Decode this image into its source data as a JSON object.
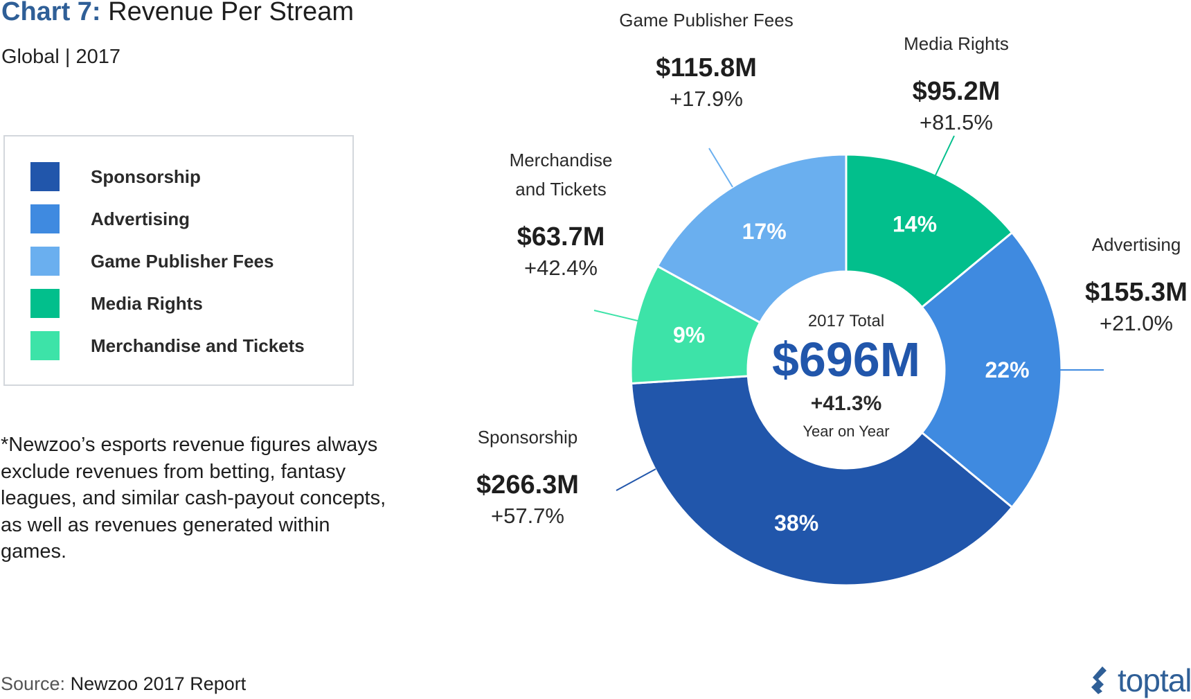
{
  "header": {
    "title_prefix": "Chart 7:",
    "title": "Revenue Per Stream",
    "subtitle": "Global | 2017"
  },
  "legend": {
    "items": [
      {
        "label": "Sponsorship",
        "color": "#2156ab"
      },
      {
        "label": "Advertising",
        "color": "#3f8ae0"
      },
      {
        "label": "Game Publisher Fees",
        "color": "#6aafef"
      },
      {
        "label": "Media Rights",
        "color": "#02bf8c"
      },
      {
        "label": "Merchandise and Tickets",
        "color": "#3de3a8"
      }
    ]
  },
  "footnote": "*Newzoo’s esports revenue figures always exclude revenues from betting, fantasy leagues, and similar cash-payout concepts, as well as revenues generated within games.",
  "source": {
    "label": "Source:",
    "value": "Newzoo 2017 Report"
  },
  "logo": {
    "text": "toptal",
    "icon": "toptal-logo-icon",
    "color": "#2f5f97"
  },
  "center": {
    "label": "2017 Total",
    "value": "$696M",
    "growth": "+41.3%",
    "growth_label": "Year on Year",
    "value_color": "#2156ab"
  },
  "chart_data": {
    "type": "pie",
    "title": "Revenue Per Stream",
    "subtitle": "Global | 2017",
    "total": 696,
    "total_label": "$696M",
    "slices": [
      {
        "name": "Media Rights",
        "percent": 14,
        "percent_label": "14%",
        "value": 95.2,
        "value_label": "$95.2M",
        "growth_label": "+81.5%",
        "color": "#02bf8c",
        "callout": [
          "Media Rights"
        ]
      },
      {
        "name": "Advertising",
        "percent": 22,
        "percent_label": "22%",
        "value": 155.3,
        "value_label": "$155.3M",
        "growth_label": "+21.0%",
        "color": "#3f8ae0",
        "callout": [
          "Advertising"
        ]
      },
      {
        "name": "Sponsorship",
        "percent": 38,
        "percent_label": "38%",
        "value": 266.3,
        "value_label": "$266.3M",
        "growth_label": "+57.7%",
        "color": "#2156ab",
        "callout": [
          "Sponsorship"
        ]
      },
      {
        "name": "Merchandise and Tickets",
        "percent": 9,
        "percent_label": "9%",
        "value": 63.7,
        "value_label": "$63.7M",
        "growth_label": "+42.4%",
        "color": "#3de3a8",
        "callout": [
          "Merchandise",
          "and Tickets"
        ]
      },
      {
        "name": "Game Publisher Fees",
        "percent": 17,
        "percent_label": "17%",
        "value": 115.8,
        "value_label": "$115.8M",
        "growth_label": "+17.9%",
        "color": "#6aafef",
        "callout": [
          "Game Publisher Fees"
        ]
      }
    ]
  }
}
